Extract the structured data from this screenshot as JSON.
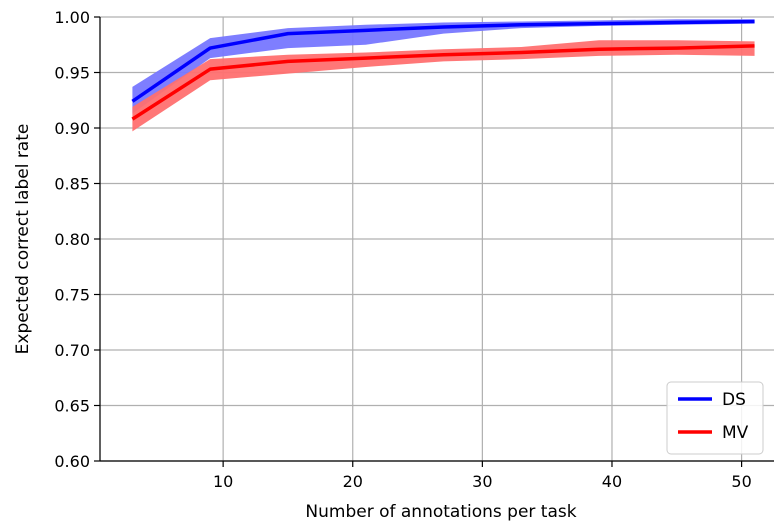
{
  "chart_data": {
    "type": "line",
    "xlabel": "Number of annotations per task",
    "ylabel": "Expected correct label rate",
    "xlim": [
      0.5,
      52.5
    ],
    "ylim": [
      0.6,
      1.0
    ],
    "xticks": [
      10,
      20,
      30,
      40,
      50
    ],
    "xtick_labels": [
      "10",
      "20",
      "30",
      "40",
      "50"
    ],
    "yticks": [
      0.6,
      0.65,
      0.7,
      0.75,
      0.8,
      0.85,
      0.9,
      0.95,
      1.0
    ],
    "ytick_labels": [
      "0.60",
      "0.65",
      "0.70",
      "0.75",
      "0.80",
      "0.85",
      "0.90",
      "0.95",
      "1.00"
    ],
    "grid": true,
    "legend_position": "lower-right",
    "series": [
      {
        "name": "DS",
        "color": "#0000ff",
        "band_color": "#7777ff",
        "points": [
          {
            "x": 3,
            "y": 0.924,
            "low": 0.913,
            "high": 0.937
          },
          {
            "x": 9,
            "y": 0.972,
            "low": 0.963,
            "high": 0.981
          },
          {
            "x": 15,
            "y": 0.985,
            "low": 0.972,
            "high": 0.99
          },
          {
            "x": 21,
            "y": 0.988,
            "low": 0.975,
            "high": 0.993
          },
          {
            "x": 27,
            "y": 0.991,
            "low": 0.985,
            "high": 0.995
          },
          {
            "x": 33,
            "y": 0.993,
            "low": 0.99,
            "high": 0.996
          },
          {
            "x": 39,
            "y": 0.994,
            "low": 0.992,
            "high": 0.997
          },
          {
            "x": 45,
            "y": 0.995,
            "low": 0.993,
            "high": 0.998
          },
          {
            "x": 51,
            "y": 0.996,
            "low": 0.994,
            "high": 0.998
          }
        ]
      },
      {
        "name": "MV",
        "color": "#ff0000",
        "band_color": "#ff7070",
        "points": [
          {
            "x": 3,
            "y": 0.908,
            "low": 0.897,
            "high": 0.919
          },
          {
            "x": 9,
            "y": 0.953,
            "low": 0.943,
            "high": 0.962
          },
          {
            "x": 15,
            "y": 0.96,
            "low": 0.949,
            "high": 0.966
          },
          {
            "x": 21,
            "y": 0.963,
            "low": 0.955,
            "high": 0.968
          },
          {
            "x": 27,
            "y": 0.966,
            "low": 0.96,
            "high": 0.971
          },
          {
            "x": 33,
            "y": 0.968,
            "low": 0.962,
            "high": 0.973
          },
          {
            "x": 39,
            "y": 0.971,
            "low": 0.965,
            "high": 0.979
          },
          {
            "x": 45,
            "y": 0.972,
            "low": 0.966,
            "high": 0.979
          },
          {
            "x": 51,
            "y": 0.974,
            "low": 0.965,
            "high": 0.978
          }
        ]
      }
    ]
  }
}
